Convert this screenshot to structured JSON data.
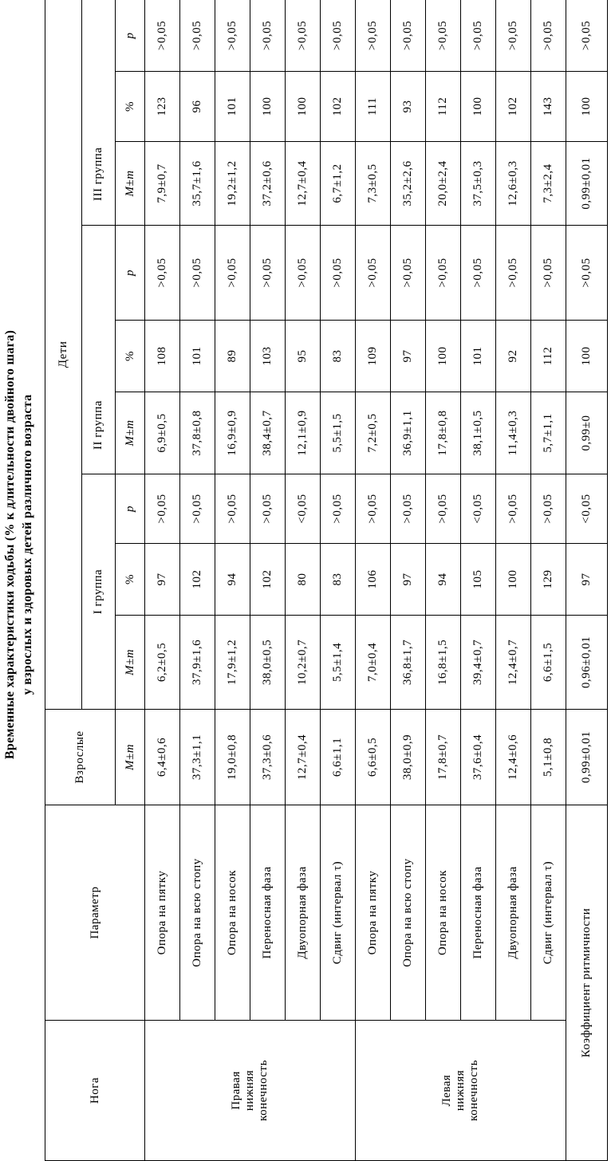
{
  "title": {
    "line1": "Временные характеристики ходьбы (% к длительности двойного шага)",
    "line2": "у взрослых и здоровых детей различного возраста"
  },
  "header": {
    "leg": "Нога",
    "parameter": "Параметр",
    "adults": "Взрослые",
    "children": "Дети",
    "groups": [
      "I группа",
      "II группа",
      "III группа"
    ],
    "mean": "M±m",
    "percent": "%",
    "p": "p"
  },
  "legs": [
    "Правая нижняя конечность",
    "Левая нижняя конечность"
  ],
  "rows": [
    {
      "param": "Опора на пятку",
      "adult": "6,4±0,6",
      "g1": [
        "6,2±0,5",
        "97",
        ">0,05"
      ],
      "g2": [
        "6,9±0,5",
        "108",
        ">0,05"
      ],
      "g3": [
        "7,9±0,7",
        "123",
        ">0,05"
      ]
    },
    {
      "param": "Опора на всю стопу",
      "adult": "37,3±1,1",
      "g1": [
        "37,9±1,6",
        "102",
        ">0,05"
      ],
      "g2": [
        "37,8±0,8",
        "101",
        ">0,05"
      ],
      "g3": [
        "35,7±1,6",
        "96",
        ">0,05"
      ]
    },
    {
      "param": "Опора на носок",
      "adult": "19,0±0,8",
      "g1": [
        "17,9±1,2",
        "94",
        ">0,05"
      ],
      "g2": [
        "16,9±0,9",
        "89",
        ">0,05"
      ],
      "g3": [
        "19,2±1,2",
        "101",
        ">0,05"
      ]
    },
    {
      "param": "Переносная фаза",
      "adult": "37,3±0,6",
      "g1": [
        "38,0±0,5",
        "102",
        ">0,05"
      ],
      "g2": [
        "38,4±0,7",
        "103",
        ">0,05"
      ],
      "g3": [
        "37,2±0,6",
        "100",
        ">0,05"
      ]
    },
    {
      "param": "Двуопорная фаза",
      "adult": "12,7±0,4",
      "g1": [
        "10,2±0,7",
        "80",
        "<0,05"
      ],
      "g2": [
        "12,1±0,9",
        "95",
        ">0,05"
      ],
      "g3": [
        "12,7±0,4",
        "100",
        ">0,05"
      ]
    },
    {
      "param": "Сдвиг (интервал τ)",
      "adult": "6,6±1,1",
      "g1": [
        "5,5±1,4",
        "83",
        ">0,05"
      ],
      "g2": [
        "5,5±1,5",
        "83",
        ">0,05"
      ],
      "g3": [
        "6,7±1,2",
        "102",
        ">0,05"
      ]
    },
    {
      "param": "Опора на пятку",
      "adult": "6,6±0,5",
      "g1": [
        "7,0±0,4",
        "106",
        ">0,05"
      ],
      "g2": [
        "7,2±0,5",
        "109",
        ">0,05"
      ],
      "g3": [
        "7,3±0,5",
        "111",
        ">0,05"
      ]
    },
    {
      "param": "Опора на всю стопу",
      "adult": "38,0±0,9",
      "g1": [
        "36,8±1,7",
        "97",
        ">0,05"
      ],
      "g2": [
        "36,9±1,1",
        "97",
        ">0,05"
      ],
      "g3": [
        "35,2±2,6",
        "93",
        ">0,05"
      ]
    },
    {
      "param": "Опора на носок",
      "adult": "17,8±0,7",
      "g1": [
        "16,8±1,5",
        "94",
        ">0,05"
      ],
      "g2": [
        "17,8±0,8",
        "100",
        ">0,05"
      ],
      "g3": [
        "20,0±2,4",
        "112",
        ">0,05"
      ]
    },
    {
      "param": "Переносная фаза",
      "adult": "37,6±0,4",
      "g1": [
        "39,4±0,7",
        "105",
        "<0,05"
      ],
      "g2": [
        "38,1±0,5",
        "101",
        ">0,05"
      ],
      "g3": [
        "37,5±0,3",
        "100",
        ">0,05"
      ]
    },
    {
      "param": "Двуопорная фаза",
      "adult": "12,4±0,6",
      "g1": [
        "12,4±0,7",
        "100",
        ">0,05"
      ],
      "g2": [
        "11,4±0,3",
        "92",
        ">0,05"
      ],
      "g3": [
        "12,6±0,3",
        "102",
        ">0,05"
      ]
    },
    {
      "param": "Сдвиг (интервал τ)",
      "adult": "5,1±0,8",
      "g1": [
        "6,6±1,5",
        "129",
        ">0,05"
      ],
      "g2": [
        "5,7±1,1",
        "112",
        ">0,05"
      ],
      "g3": [
        "7,3±2,4",
        "143",
        ">0,05"
      ]
    },
    {
      "param": "Коэффициент ритмичности",
      "adult": "0,99±0,01",
      "g1": [
        "0,96±0,01",
        "97",
        "<0,05"
      ],
      "g2": [
        "0,99±0",
        "100",
        ">0,05"
      ],
      "g3": [
        "0,99±0,01",
        "100",
        ">0,05"
      ]
    }
  ]
}
